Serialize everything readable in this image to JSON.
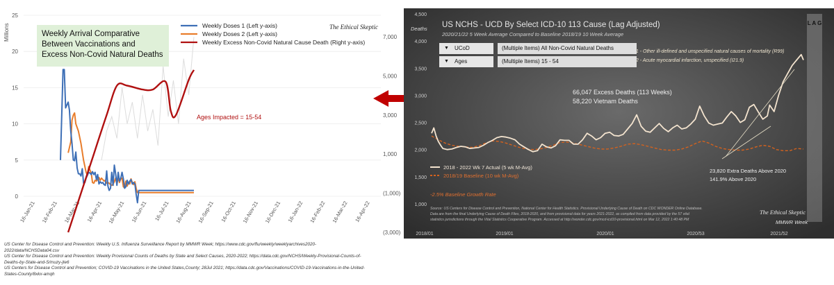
{
  "left": {
    "title_box": [
      "Weekly Arrival Comparative",
      "Between Vaccinations and",
      "Excess Non-Covid Natural Deaths"
    ],
    "axis_unit": "Millions",
    "watermark": "The Ethical Skeptic",
    "annotation": "Ages Impacted = 15-54",
    "colors": {
      "dose1": "#3d6fb6",
      "dose2": "#e87d2c",
      "excess": "#b01010",
      "ghost": "#dcdcdc"
    },
    "sources": [
      "US Center for Disease Control and Prevention: Weekly U.S. Influenza Surveillance Report by MMWR Week; https://www.cdc.gov/flu/weekly/weeklyarchives2020-",
      "2022/data/NCHSData04.csv",
      "US Center for Disease Control and Prevention: Weekly Provisional Counts of Deaths by State and Select Causes, 2020-2022; https://data.cdc.gov/NCHS/Weekly-Provisional-Counts-of-",
      "Deaths-by-State-and-S/muzy-jte6",
      "US Centers for Disease Control and Prevention; COVID-19 Vaccinations in the United States,County; 28Jul 2021; https://data.cdc.gov/Vaccinations/COVID-19-Vaccinations-in-the-United-",
      "States-County/8xkx-amqh"
    ]
  },
  "chart_data": [
    {
      "type": "line",
      "title": "Weekly Arrival Comparative Between Vaccinations and Excess Non-Covid Natural Deaths",
      "ylabel": "Millions",
      "x_ticks": [
        "16-Jan-21",
        "16-Feb-21",
        "16-Mar-21",
        "16-Apr-21",
        "16-May-21",
        "16-Jun-21",
        "16-Jul-21",
        "16-Aug-21",
        "16-Sep-21",
        "16-Oct-21",
        "16-Nov-21",
        "16-Dec-21",
        "16-Jan-22",
        "16-Feb-22",
        "16-Mar-22",
        "16-Apr-22"
      ],
      "ylim_left": [
        0,
        25
      ],
      "y_ticks_left": [
        0,
        5,
        10,
        15,
        20,
        25
      ],
      "ylim_right": [
        -3000,
        7000
      ],
      "y_ticks_right": [
        "(3,000)",
        "(1,000)",
        "1,000",
        "3,000",
        "5,000",
        "7,000"
      ],
      "legend_position": "top-center",
      "series": [
        {
          "name": "Weekly Doses 1 (Left y-axis)",
          "axis": "left",
          "x": [
            5.0,
            5.5,
            5.75,
            6.0,
            6.25,
            6.5,
            6.75,
            7.0,
            7.25,
            7.5,
            7.75,
            8.0,
            8.25,
            8.5,
            8.75,
            9.0,
            9.25,
            9.5,
            9.75,
            10.0,
            10.25,
            10.5,
            10.75,
            11.0,
            11.25,
            11.5,
            11.75,
            12.0,
            12.25,
            12.5,
            12.75,
            13.0,
            13.25,
            13.5,
            13.75,
            14.0,
            14.25,
            14.5,
            14.75,
            15.0,
            15.25,
            15.5,
            15.75,
            16.0,
            16.25,
            16.5,
            16.75,
            17.0,
            17.25,
            17.5,
            17.75,
            18.0,
            18.25,
            18.5,
            18.75,
            19.0,
            19.25,
            19.5,
            19.75,
            20.0,
            20.25,
            20.5,
            20.75,
            21.0,
            21.25,
            21.5,
            21.75,
            22.0,
            22.25,
            22.5,
            22.75,
            23.0,
            23.25,
            23.5,
            23.75,
            24.0,
            25.0,
            26.0,
            27.0,
            28.0,
            29.0,
            30.0,
            31.0
          ],
          "values": [
            5.0,
            17.5,
            17.5,
            12.2,
            12.6,
            13.0,
            11.9,
            9.0,
            7.3,
            5.0,
            4.9,
            6.1,
            3.9,
            3.1,
            3.1,
            2.8,
            3.8,
            1.8,
            1.9,
            2.5,
            2.9,
            3.3,
            3.2,
            3.0,
            3.4,
            3.0,
            3.3,
            2.3,
            3.0,
            1.7,
            2.0,
            1.8,
            1.9,
            1.6,
            1.5,
            3.5,
            1.4,
            0.8,
            1.1,
            3.3,
            1.5,
            4.3,
            3.1,
            1.5,
            3.3,
            2.1,
            2.5,
            3.3,
            2.4,
            1.1,
            1.3,
            2.2,
            1.7,
            2.1,
            2.3,
            1.7,
            1.9,
            1.7,
            0.3,
            -0.9,
            0.8,
            0.8,
            0.8,
            0.8,
            0.8,
            0.8,
            0.8,
            0.8,
            0.8,
            0.8,
            0.8,
            0.8,
            0.8,
            0.8,
            0.8,
            0.8,
            0.8,
            0.8,
            0.8,
            0.8,
            0.8,
            0.8,
            0.8
          ]
        },
        {
          "name": "Weekly Doses 2 (Left y-axis)",
          "axis": "left",
          "x": [
            6.5,
            7.0,
            7.25,
            7.5,
            7.75,
            8.0,
            8.5,
            9.0,
            9.5,
            10.0,
            10.25,
            10.5,
            10.75,
            11.0,
            11.25,
            11.5,
            11.75,
            12.0,
            12.25,
            12.5,
            12.75,
            13.0,
            13.25,
            13.5,
            13.75,
            14.0,
            14.25,
            14.5,
            14.75,
            15.0,
            15.25,
            15.5,
            15.75,
            16.0,
            16.25,
            16.5,
            16.75,
            17.0,
            17.25,
            17.5,
            17.75,
            18.0,
            18.25,
            18.5,
            18.75,
            19.0,
            19.25,
            19.5,
            19.75,
            20.0,
            20.5,
            21.0,
            22.0,
            23.0,
            24.0,
            25.0,
            26.0,
            27.0,
            28.0,
            29.0,
            30.0,
            31.0
          ],
          "values": [
            6.0,
            7.5,
            10.5,
            11.2,
            11.5,
            10.0,
            9.0,
            7.3,
            5.0,
            3.3,
            2.9,
            4.1,
            3.6,
            3.2,
            1.9,
            1.8,
            2.2,
            2.1,
            2.3,
            2.6,
            2.2,
            2.5,
            2.3,
            2.1,
            2.2,
            1.8,
            1.9,
            1.8,
            1.6,
            1.5,
            1.7,
            2.0,
            2.5,
            1.7,
            2.6,
            1.9,
            2.4,
            2.5,
            1.3,
            1.2,
            2.1,
            1.4,
            1.9,
            1.7,
            2.4,
            1.9,
            1.6,
            2.0,
            1.1,
            0.5,
            0.5,
            0.5,
            0.5,
            0.5,
            0.5,
            0.5,
            0.5,
            0.5,
            0.5,
            0.5,
            0.5,
            0.5
          ]
        },
        {
          "name": "Weekly Excess Non-Covid Natural Cause Death (Right y-axis)",
          "axis": "right",
          "x": [
            6.5,
            9.0,
            11.5,
            14.0,
            16.0,
            18.0,
            21.0,
            23.0,
            25.5,
            26.5,
            27.5,
            30.0,
            31.0
          ],
          "values": [
            -3000,
            -1000,
            1000,
            3000,
            4500,
            4500,
            4300,
            4300,
            4700,
            3200,
            3000,
            4800,
            5300
          ]
        }
      ]
    },
    {
      "type": "line",
      "title": "US NCHS - UCD By Select ICD-10 113 Cause (Lag Adjusted)",
      "subtitle": "2020/21/22  5 Week Average Compared to Baseline 2018/19  10 Week Average",
      "ylabel": "Deaths",
      "xlabel": "MMWR Week",
      "x_ticks": [
        "2018/01",
        "2019/01",
        "2020/01",
        "2020/53",
        "2021/52"
      ],
      "ylim": [
        1000,
        4500
      ],
      "y_ticks": [
        "1,000",
        "1,500",
        "2,000",
        "2,500",
        "3,000",
        "3,500",
        "4,000",
        "4,500"
      ],
      "filters": [
        {
          "button": "UCoD",
          "value": "(Multiple Items)  All Non-Covid Natural Deaths"
        },
        {
          "button": "Ages",
          "value": "(Multiple Items)  15 - 54"
        }
      ],
      "annotations": [
        "#1 - Other ill-defined and unspecified natural causes of mortality (R99)",
        "#2 - Acute myocardial infarction, unspecified (I21.9)",
        "66,047  Excess Deaths (113 Weeks)",
        "58,220  Vietnam Deaths",
        "23,820   Extra Deaths Above 2020",
        "141.9% Above 2020",
        "-2.5% Baseline Growth Rate"
      ],
      "lag_label": "L A G",
      "watermark": "The Ethical Skeptic",
      "source_note": [
        "Source: US Centers for Disease Control and Prevention, National Center for Health Statistics. Provisional Underlying Cause of Death on CDC WONDER Online Database.",
        "Data are from the final Underlying Cause of Death Files, 2018-2020, and from provisional data for years 2021-2022, as compiled from data provided by the 57 vital",
        "statistics jurisdictions through the Vital Statistics Cooperative Program.  Accessed at http://wonder.cdc.gov/mcd-icd10-provisional.html on Mar 12, 2022 1:40:48 PM"
      ],
      "legend_position": "bottom-left",
      "series": [
        {
          "name": "2018 - 2022 Wk 7 Actual (5 wk M-Avg)",
          "color": "#f4e4cf",
          "x": [
            0,
            2,
            4,
            6,
            8,
            10,
            14,
            18,
            22,
            26,
            30,
            34,
            38,
            42,
            46,
            50,
            54,
            58,
            62,
            66,
            70,
            74,
            78,
            82,
            86,
            90,
            94,
            98,
            102,
            106,
            110,
            114,
            118,
            122,
            126,
            130,
            134,
            138,
            142,
            146,
            150,
            154,
            158,
            162,
            166,
            170,
            174,
            178,
            182,
            186,
            190,
            194,
            198,
            202,
            206,
            210,
            214,
            218,
            222,
            226,
            230,
            234,
            238,
            242,
            246,
            250,
            254,
            258,
            262,
            266,
            270,
            274,
            278,
            282,
            286,
            290,
            294,
            298,
            300,
            304,
            308,
            312,
            316,
            320,
            324,
            328,
            330
          ],
          "values": [
            2300,
            2400,
            2250,
            2150,
            2080,
            2020,
            2000,
            2010,
            2040,
            2060,
            2050,
            2020,
            2030,
            2040,
            2080,
            2130,
            2170,
            2220,
            2240,
            2230,
            2210,
            2180,
            2100,
            2050,
            2000,
            1960,
            1980,
            2100,
            2050,
            2030,
            2070,
            2180,
            2170,
            2170,
            2100,
            2100,
            2180,
            2300,
            2250,
            2180,
            2220,
            2300,
            2320,
            2260,
            2250,
            2280,
            2380,
            2480,
            2640,
            2430,
            2340,
            2320,
            2400,
            2480,
            2390,
            2330,
            2400,
            2450,
            2380,
            2400,
            2470,
            2560,
            2800,
            2620,
            2490,
            2450,
            2470,
            2490,
            2600,
            2700,
            2620,
            2500,
            2550,
            2780,
            2830,
            2690,
            2560,
            2620,
            2820,
            2700,
            3000,
            3250,
            3400,
            3550,
            3650,
            3750,
            3650
          ]
        },
        {
          "name": "2018/19  Baseline (10 wk M-Avg)",
          "color": "#d4621e",
          "x": [
            0,
            6,
            12,
            18,
            24,
            30,
            36,
            42,
            48,
            54,
            60,
            66,
            72,
            78,
            84,
            90,
            96,
            102,
            108,
            114,
            120,
            126,
            132,
            138,
            144,
            150,
            156,
            162,
            168,
            174,
            180,
            186,
            192,
            198,
            204,
            210,
            216,
            222,
            228,
            234,
            240,
            246,
            252,
            258,
            264,
            270,
            276,
            282,
            288,
            294,
            300,
            306,
            312,
            318,
            324,
            330
          ],
          "values": [
            2250,
            2180,
            2120,
            2080,
            2060,
            2050,
            2040,
            2070,
            2120,
            2160,
            2150,
            2120,
            2080,
            2040,
            2010,
            2000,
            2010,
            2040,
            2080,
            2130,
            2140,
            2120,
            2090,
            2060,
            2030,
            2010,
            2010,
            2030,
            2060,
            2100,
            2110,
            2090,
            2060,
            2030,
            2000,
            1990,
            1990,
            2010,
            2050,
            2110,
            2160,
            2120,
            2060,
            2020,
            2000,
            1990,
            1990,
            2010,
            2050,
            2080,
            2060,
            2000,
            1980,
            1980,
            2020,
            2010
          ]
        }
      ]
    }
  ]
}
